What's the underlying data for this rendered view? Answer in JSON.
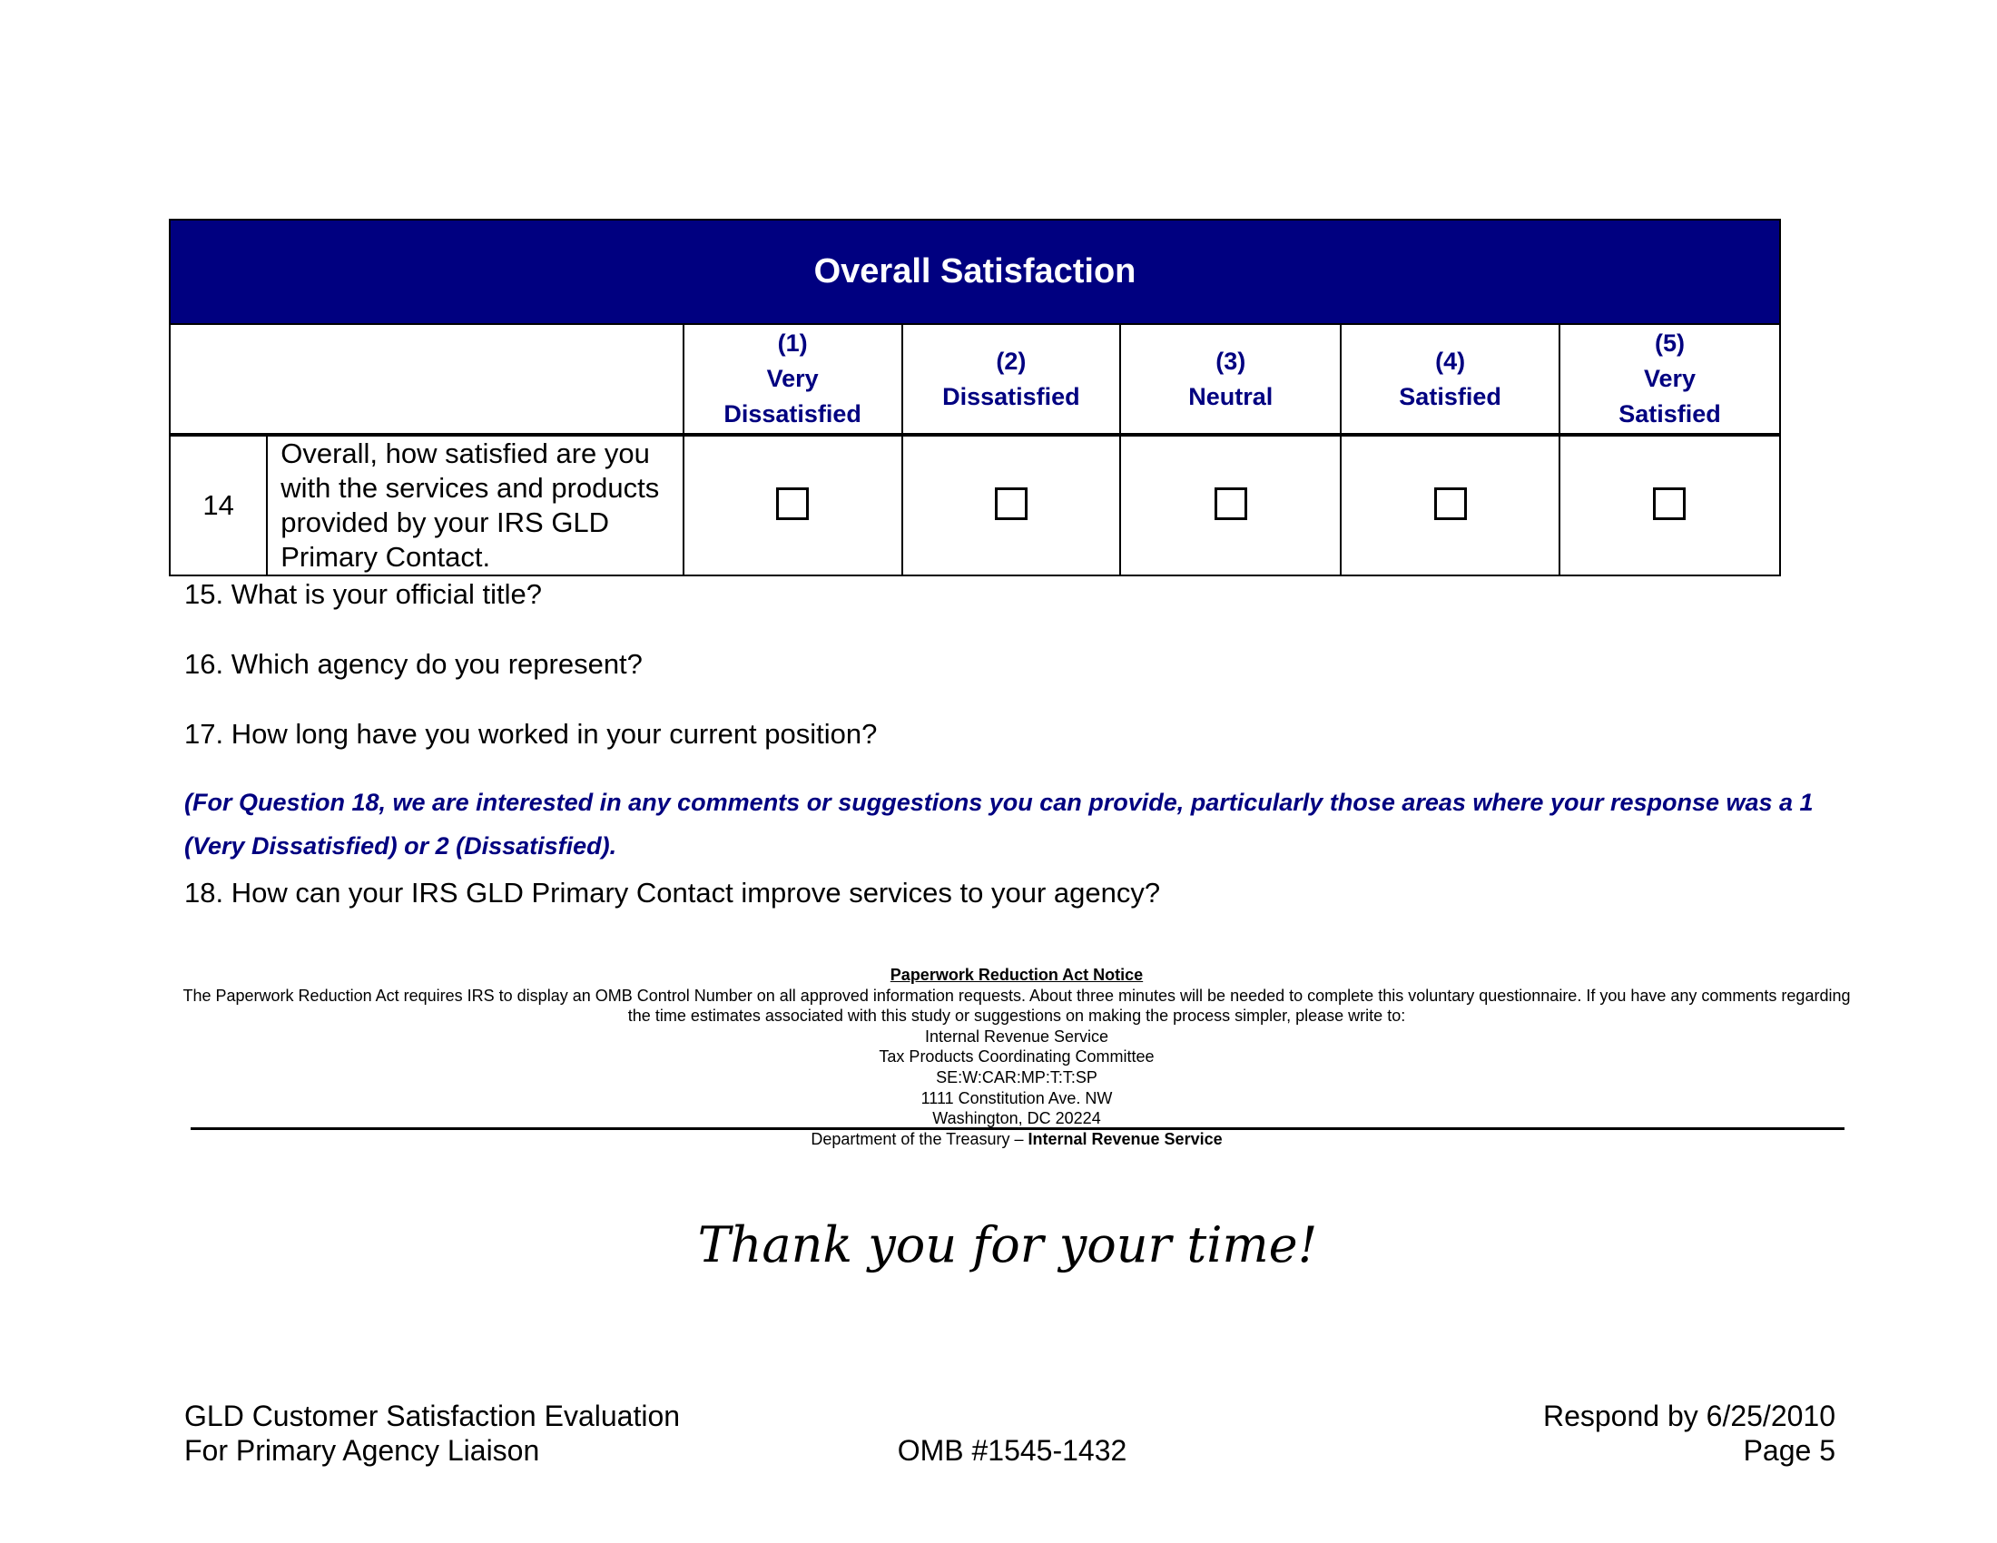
{
  "table": {
    "title": "Overall Satisfaction",
    "columns": [
      {
        "num": "(1)",
        "label1": "Very",
        "label2": "Dissatisfied"
      },
      {
        "num": "(2)",
        "label1": "Dissatisfied",
        "label2": ""
      },
      {
        "num": "(3)",
        "label1": "Neutral",
        "label2": ""
      },
      {
        "num": "(4)",
        "label1": "Satisfied",
        "label2": ""
      },
      {
        "num": "(5)",
        "label1": "Very",
        "label2": "Satisfied"
      }
    ],
    "question": {
      "number": "14",
      "text": "Overall, how satisfied are you with the services and products provided by your IRS GLD Primary Contact."
    }
  },
  "questions": {
    "q15": "15. What is your official title?",
    "q16": "16. Which agency do you represent?",
    "q17": "17. How long have you worked in your current position?",
    "note": "(For Question 18, we are interested in any comments or suggestions you can provide, particularly those areas where your response was a 1 (Very Dissatisfied) or 2 (Dissatisfied).",
    "q18": "18. How can your IRS GLD Primary Contact improve services to your agency?"
  },
  "notice": {
    "title": "Paperwork Reduction Act Notice",
    "body": "The Paperwork Reduction Act requires IRS to display an OMB Control Number on all approved information requests.  About three minutes will be needed to complete this voluntary questionnaire.  If you have any comments regarding the time estimates associated with this study or suggestions on making the process simpler, please write to:",
    "address": [
      "Internal Revenue Service",
      "Tax Products Coordinating Committee",
      "SE:W:CAR:MP:T:T:SP",
      "1111 Constitution Ave. NW",
      "Washington, DC  20224"
    ],
    "dept": "Department of the Treasury – ",
    "dept_bold": "Internal Revenue Service"
  },
  "thanks": "Thank you for your time!",
  "footer": {
    "left1": "GLD Customer Satisfaction Evaluation",
    "left2": "For Primary Agency Liaison",
    "center": "OMB #1545-1432",
    "right1": "Respond by 6/25/2010",
    "right2": "Page 5"
  }
}
